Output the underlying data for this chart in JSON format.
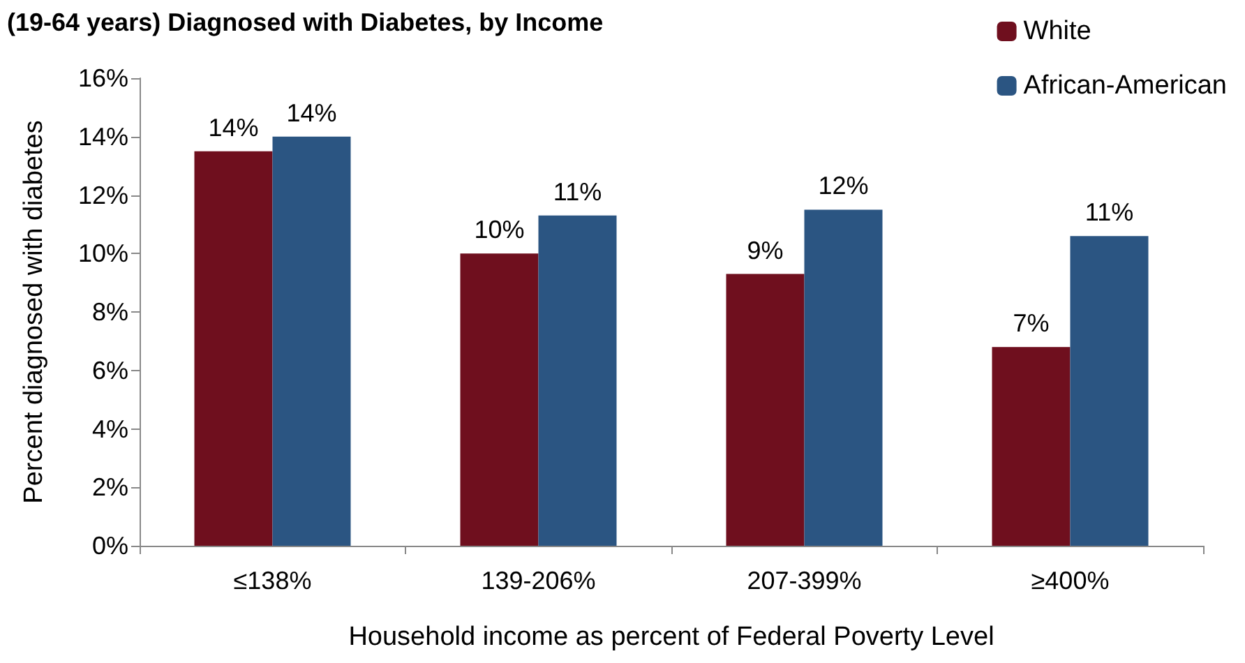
{
  "chart_data": {
    "type": "bar",
    "title": "(19-64 years) Diagnosed with Diabetes, by Income",
    "xlabel": "Household income as percent of Federal Poverty Level",
    "ylabel": "Percent diagnosed with diabetes",
    "categories": [
      "≤138%",
      "139-206%",
      "207-399%",
      "≥400%"
    ],
    "series": [
      {
        "name": "White",
        "color": "#6f0f1e",
        "values": [
          13.5,
          10.0,
          9.3,
          6.8
        ],
        "value_labels": [
          "14%",
          "10%",
          "9%",
          "7%"
        ]
      },
      {
        "name": "African-American",
        "color": "#2b5582",
        "values": [
          14.0,
          11.3,
          11.5,
          10.6
        ],
        "value_labels": [
          "14%",
          "11%",
          "12%",
          "11%"
        ]
      }
    ],
    "ylim": [
      0,
      16
    ],
    "yticks": [
      {
        "value": 0,
        "label": "0%"
      },
      {
        "value": 2,
        "label": "2%"
      },
      {
        "value": 4,
        "label": "4%"
      },
      {
        "value": 6,
        "label": "6%"
      },
      {
        "value": 8,
        "label": "8%"
      },
      {
        "value": 10,
        "label": "10%"
      },
      {
        "value": 12,
        "label": "12%"
      },
      {
        "value": 14,
        "label": "14%"
      },
      {
        "value": 16,
        "label": "16%"
      }
    ],
    "grid": false,
    "legend": "top right"
  }
}
